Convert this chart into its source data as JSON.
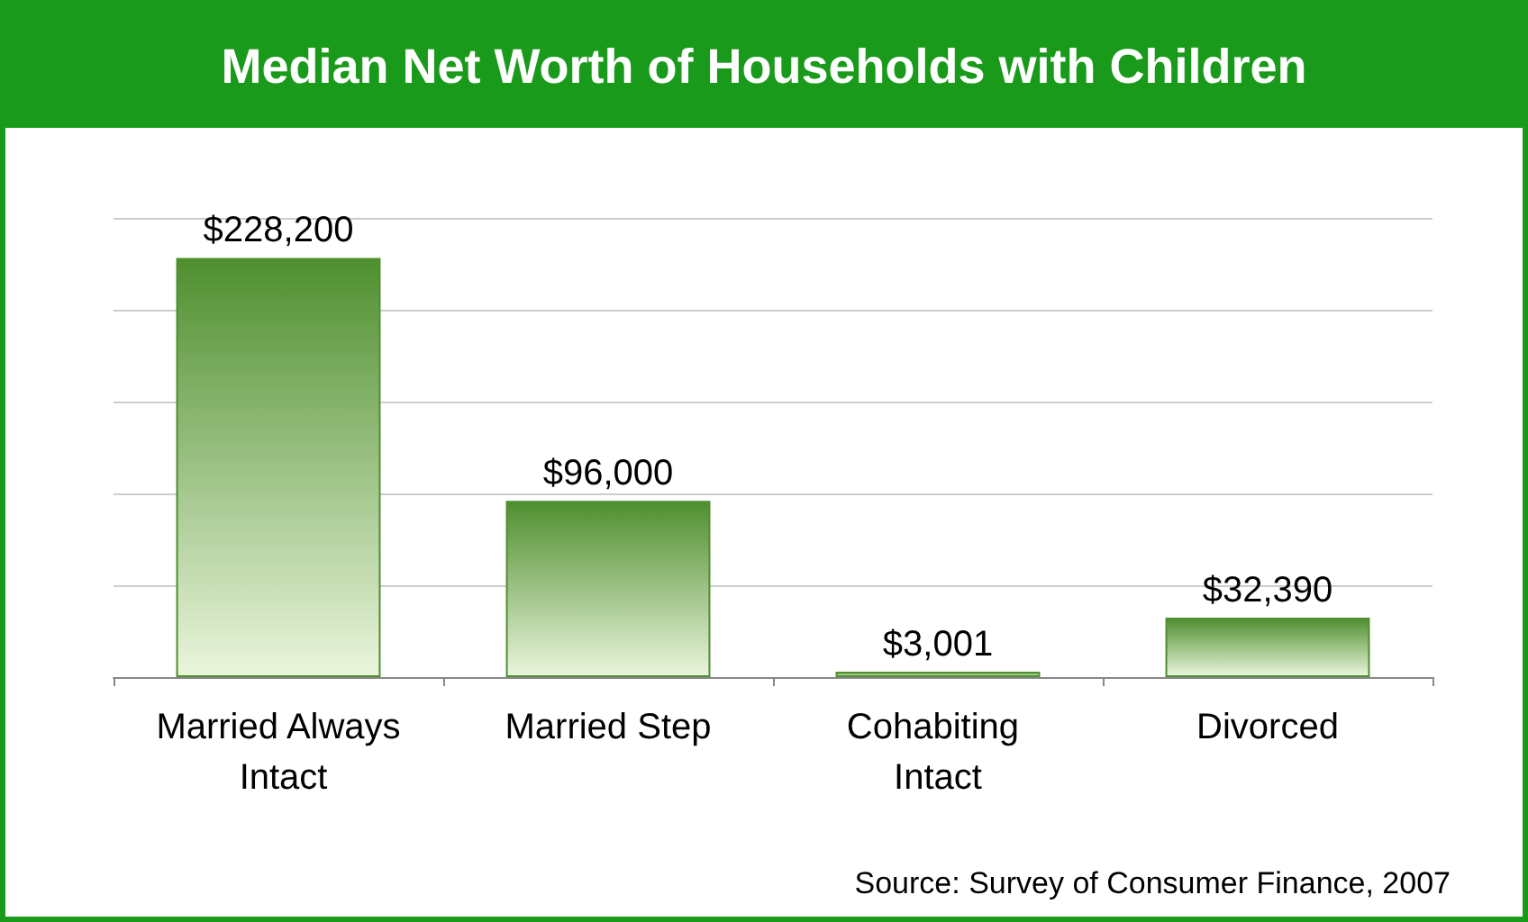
{
  "chart_data": {
    "type": "bar",
    "title": "Median Net Worth of Households with Children",
    "categories": [
      "Married Always Intact",
      "Married Step",
      "Cohabiting Intact",
      "Divorced"
    ],
    "values": [
      228200,
      96000,
      3001,
      32390
    ],
    "value_labels": [
      "$228,200",
      "$96,000",
      "$3,001",
      "$32,390"
    ],
    "color": "#4f8f2f",
    "ylim": [
      0,
      250000
    ],
    "yticks": [
      {
        "value": 0,
        "label": null
      },
      {
        "value": 50000,
        "label": null
      },
      {
        "value": 100000,
        "label": null
      },
      {
        "value": 150000,
        "label": null
      },
      {
        "value": 200000,
        "label": null
      },
      {
        "value": 250000,
        "label": null
      }
    ],
    "tick_labels": "x",
    "grid": "y",
    "annotations": [
      "Source: Survey of Consumer Finance, 2007"
    ]
  }
}
